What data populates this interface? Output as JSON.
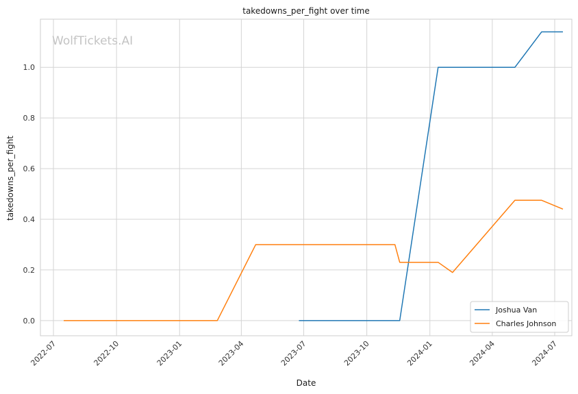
{
  "chart_data": {
    "type": "line",
    "title": "takedowns_per_fight over time",
    "xlabel": "Date",
    "ylabel": "takedowns_per_fight",
    "watermark": "WolfTickets.AI",
    "grid": true,
    "legend_position": "bottom-right",
    "xlim": [
      "2022-06-12",
      "2024-07-26"
    ],
    "ylim": [
      -0.06,
      1.19
    ],
    "x_ticks": [
      {
        "value": "2022-07-01",
        "label": "2022-07"
      },
      {
        "value": "2022-10-01",
        "label": "2022-10"
      },
      {
        "value": "2023-01-01",
        "label": "2023-01"
      },
      {
        "value": "2023-04-01",
        "label": "2023-04"
      },
      {
        "value": "2023-07-01",
        "label": "2023-07"
      },
      {
        "value": "2023-10-01",
        "label": "2023-10"
      },
      {
        "value": "2024-01-01",
        "label": "2024-01"
      },
      {
        "value": "2024-04-01",
        "label": "2024-04"
      },
      {
        "value": "2024-07-01",
        "label": "2024-07"
      }
    ],
    "y_ticks": [
      {
        "value": 0.0,
        "label": "0.0"
      },
      {
        "value": 0.2,
        "label": "0.2"
      },
      {
        "value": 0.4,
        "label": "0.4"
      },
      {
        "value": 0.6,
        "label": "0.6"
      },
      {
        "value": 0.8,
        "label": "0.8"
      },
      {
        "value": 1.0,
        "label": "1.0"
      }
    ],
    "series": [
      {
        "name": "Joshua Van",
        "color": "#1f77b4",
        "x": [
          "2023-06-24",
          "2023-11-18",
          "2024-01-13",
          "2024-05-04",
          "2024-06-12",
          "2024-07-13"
        ],
        "y": [
          0.0,
          0.0,
          1.0,
          1.0,
          1.14,
          1.14
        ]
      },
      {
        "name": "Charles Johnson",
        "color": "#ff7f0e",
        "x": [
          "2022-07-16",
          "2023-02-25",
          "2023-04-22",
          "2023-11-11",
          "2023-11-18",
          "2024-01-13",
          "2024-02-03",
          "2024-05-04",
          "2024-06-12",
          "2024-07-13"
        ],
        "y": [
          0.0,
          0.0,
          0.3,
          0.3,
          0.23,
          0.23,
          0.19,
          0.475,
          0.475,
          0.44
        ]
      }
    ]
  }
}
